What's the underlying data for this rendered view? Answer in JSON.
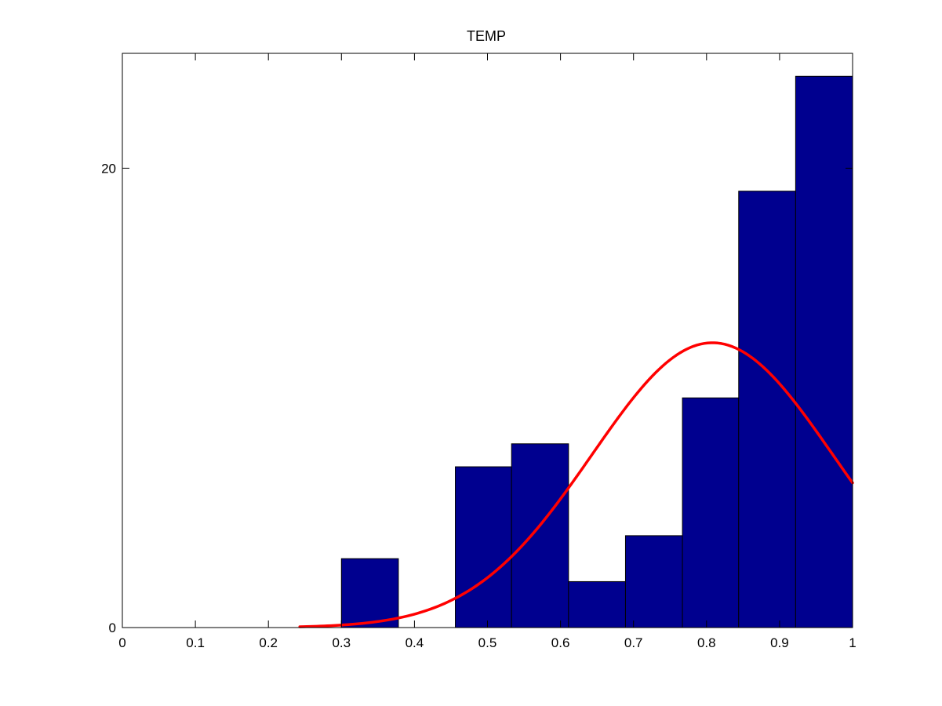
{
  "chart_data": {
    "type": "bar",
    "title": "TEMP",
    "xlabel": "",
    "ylabel": "",
    "xlim": [
      0,
      1
    ],
    "ylim": [
      0,
      25
    ],
    "grid": false,
    "x_ticks": [
      "0",
      "0.1",
      "0.2",
      "0.3",
      "0.4",
      "0.5",
      "0.6",
      "0.7",
      "0.8",
      "0.9",
      "1"
    ],
    "y_ticks": [
      "0",
      "20"
    ],
    "bins": [
      {
        "x0": 0.3,
        "x1": 0.378,
        "count": 3
      },
      {
        "x0": 0.378,
        "x1": 0.456,
        "count": 0
      },
      {
        "x0": 0.456,
        "x1": 0.533,
        "count": 7
      },
      {
        "x0": 0.533,
        "x1": 0.611,
        "count": 8
      },
      {
        "x0": 0.611,
        "x1": 0.689,
        "count": 2
      },
      {
        "x0": 0.689,
        "x1": 0.767,
        "count": 4
      },
      {
        "x0": 0.767,
        "x1": 0.844,
        "count": 10
      },
      {
        "x0": 0.844,
        "x1": 0.922,
        "count": 19
      },
      {
        "x0": 0.922,
        "x1": 1.0,
        "count": 24
      }
    ],
    "fit_curve": {
      "type": "normal",
      "mean": 0.808,
      "std": 0.165,
      "peak": 12.4,
      "x_range": [
        0.243,
        1.0
      ]
    },
    "colors": {
      "bar_fill": "#00008F",
      "bar_edge": "#000000",
      "curve": "#FF0000",
      "axes": "#000000",
      "background": "#FFFFFF"
    }
  }
}
